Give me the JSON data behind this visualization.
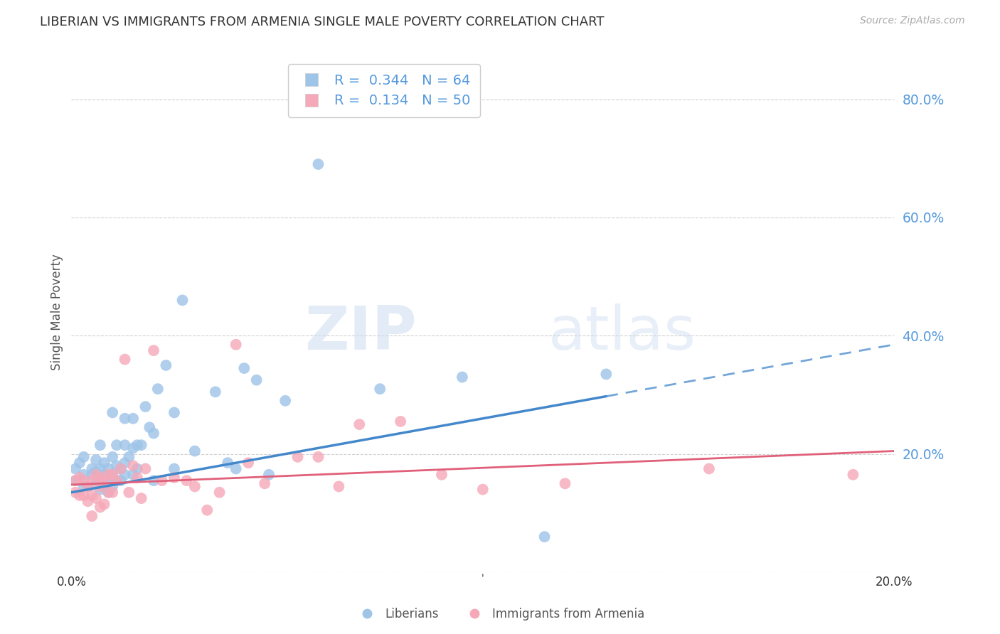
{
  "title": "LIBERIAN VS IMMIGRANTS FROM ARMENIA SINGLE MALE POVERTY CORRELATION CHART",
  "source": "Source: ZipAtlas.com",
  "ylabel": "Single Male Poverty",
  "xlim": [
    0.0,
    0.2
  ],
  "ylim": [
    0.0,
    0.88
  ],
  "yticks": [
    0.0,
    0.2,
    0.4,
    0.6,
    0.8
  ],
  "xticks": [
    0.0,
    0.05,
    0.1,
    0.15,
    0.2
  ],
  "series1_label": "Liberians",
  "series1_R": 0.344,
  "series1_N": 64,
  "series1_color": "#9ec4e8",
  "series1_trend_color": "#4488cc",
  "series2_label": "Immigrants from Armenia",
  "series2_R": 0.134,
  "series2_N": 50,
  "series2_color": "#f5a8b8",
  "series2_trend_color": "#e0607a",
  "background_color": "#ffffff",
  "grid_color": "#d0d0d0",
  "axis_label_color": "#5599dd",
  "watermark_zip": "ZIP",
  "watermark_atlas": "atlas",
  "series1_x": [
    0.001,
    0.001,
    0.002,
    0.003,
    0.003,
    0.003,
    0.004,
    0.005,
    0.005,
    0.006,
    0.006,
    0.006,
    0.007,
    0.007,
    0.007,
    0.007,
    0.008,
    0.008,
    0.008,
    0.009,
    0.009,
    0.009,
    0.01,
    0.01,
    0.01,
    0.01,
    0.011,
    0.011,
    0.011,
    0.012,
    0.012,
    0.013,
    0.013,
    0.013,
    0.013,
    0.014,
    0.015,
    0.015,
    0.015,
    0.016,
    0.016,
    0.017,
    0.018,
    0.019,
    0.02,
    0.02,
    0.021,
    0.023,
    0.025,
    0.025,
    0.027,
    0.03,
    0.035,
    0.038,
    0.04,
    0.042,
    0.045,
    0.048,
    0.052,
    0.06,
    0.075,
    0.095,
    0.115,
    0.13
  ],
  "series1_y": [
    0.155,
    0.175,
    0.185,
    0.145,
    0.165,
    0.195,
    0.145,
    0.165,
    0.175,
    0.15,
    0.17,
    0.19,
    0.14,
    0.155,
    0.175,
    0.215,
    0.145,
    0.165,
    0.185,
    0.135,
    0.155,
    0.175,
    0.145,
    0.165,
    0.195,
    0.27,
    0.155,
    0.18,
    0.215,
    0.155,
    0.175,
    0.165,
    0.185,
    0.215,
    0.26,
    0.195,
    0.165,
    0.21,
    0.26,
    0.175,
    0.215,
    0.215,
    0.28,
    0.245,
    0.155,
    0.235,
    0.31,
    0.35,
    0.175,
    0.27,
    0.46,
    0.205,
    0.305,
    0.185,
    0.175,
    0.345,
    0.325,
    0.165,
    0.29,
    0.69,
    0.31,
    0.33,
    0.06,
    0.335
  ],
  "series2_x": [
    0.001,
    0.001,
    0.002,
    0.002,
    0.003,
    0.003,
    0.004,
    0.004,
    0.005,
    0.005,
    0.005,
    0.006,
    0.006,
    0.007,
    0.007,
    0.007,
    0.008,
    0.008,
    0.009,
    0.009,
    0.01,
    0.01,
    0.011,
    0.012,
    0.013,
    0.014,
    0.015,
    0.016,
    0.017,
    0.018,
    0.02,
    0.022,
    0.025,
    0.028,
    0.03,
    0.033,
    0.036,
    0.04,
    0.043,
    0.047,
    0.055,
    0.06,
    0.065,
    0.07,
    0.08,
    0.09,
    0.1,
    0.12,
    0.155,
    0.19
  ],
  "series2_y": [
    0.135,
    0.155,
    0.13,
    0.16,
    0.13,
    0.155,
    0.12,
    0.145,
    0.095,
    0.13,
    0.155,
    0.125,
    0.165,
    0.11,
    0.145,
    0.16,
    0.115,
    0.155,
    0.135,
    0.165,
    0.135,
    0.165,
    0.155,
    0.175,
    0.36,
    0.135,
    0.18,
    0.16,
    0.125,
    0.175,
    0.375,
    0.155,
    0.16,
    0.155,
    0.145,
    0.105,
    0.135,
    0.385,
    0.185,
    0.15,
    0.195,
    0.195,
    0.145,
    0.25,
    0.255,
    0.165,
    0.14,
    0.15,
    0.175,
    0.165
  ],
  "trend1_x0": 0.0,
  "trend1_y0": 0.135,
  "trend1_x1": 0.2,
  "trend1_y1": 0.385,
  "trend1_solid_end": 0.13,
  "trend2_x0": 0.0,
  "trend2_y0": 0.148,
  "trend2_x1": 0.2,
  "trend2_y1": 0.205
}
